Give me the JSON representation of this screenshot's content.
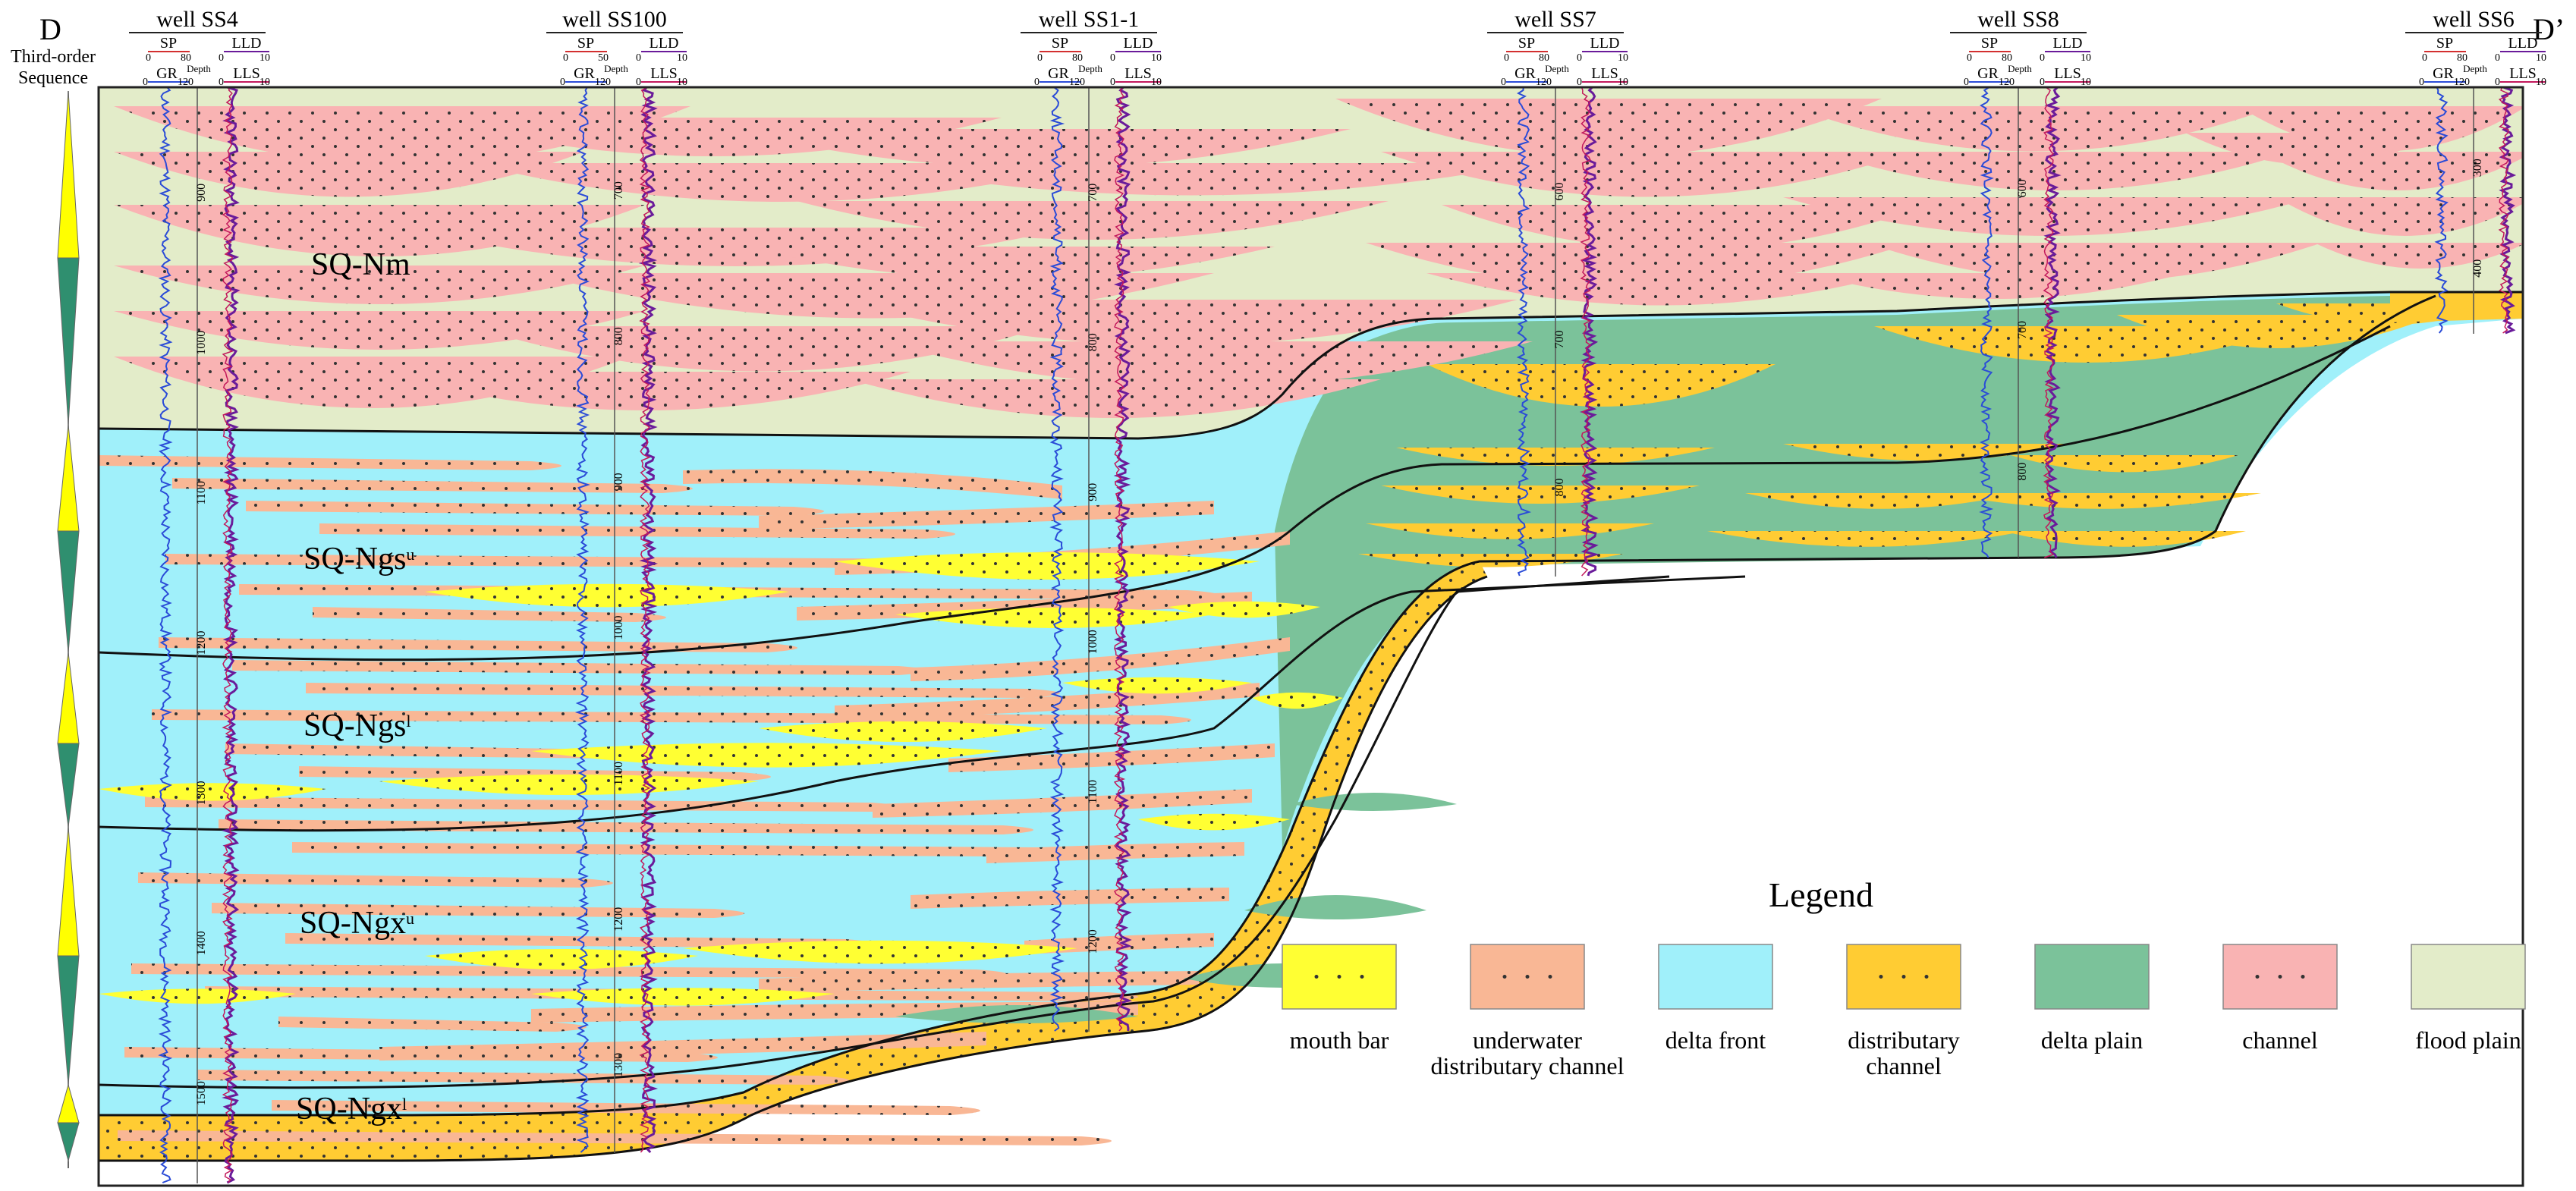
{
  "section": {
    "left_label": "D",
    "right_label": "D’",
    "sequence_column_title": [
      "Third-order",
      "Sequence"
    ]
  },
  "log_labels": {
    "sp": "SP",
    "gr": "GR",
    "depth": "Depth",
    "lld": "LLD",
    "lls": "LLS"
  },
  "wells": [
    {
      "name": "well SS4",
      "sp_max": "80",
      "depths": [
        "900",
        "1000",
        "1100",
        "1200",
        "1300",
        "1400",
        "1500"
      ]
    },
    {
      "name": "well SS100",
      "sp_max": "50",
      "depths": [
        "700",
        "800",
        "900",
        "1000",
        "1100",
        "1200",
        "1300"
      ]
    },
    {
      "name": "well SS1-1",
      "sp_max": "80",
      "depths": [
        "700",
        "800",
        "900",
        "1000",
        "1100",
        "1200"
      ]
    },
    {
      "name": "well SS7",
      "sp_max": "80",
      "depths": [
        "600",
        "700",
        "800"
      ]
    },
    {
      "name": "well SS8",
      "sp_max": "80",
      "depths": [
        "600",
        "700",
        "800"
      ]
    },
    {
      "name": "well SS6",
      "sp_max": "80",
      "depths": [
        "300",
        "400"
      ]
    }
  ],
  "log_scale": {
    "sp_min": "0",
    "gr_min": "0",
    "gr_max": "120",
    "res_min": "0",
    "res_max": "10"
  },
  "sequences": [
    {
      "base": "SQ-Nm",
      "sup": ""
    },
    {
      "base": "SQ-Ngs",
      "sup": "u"
    },
    {
      "base": "SQ-Ngs",
      "sup": "l"
    },
    {
      "base": "SQ-Ngx",
      "sup": "u"
    },
    {
      "base": "SQ-Ngx",
      "sup": "l"
    }
  ],
  "legend": {
    "title": "Legend",
    "items": [
      {
        "name": "mouth-bar",
        "lines": [
          "mouth bar"
        ],
        "color": "#ffff33",
        "dots": true
      },
      {
        "name": "underwater-distributary-channel",
        "lines": [
          "underwater",
          "distributary channel"
        ],
        "color": "#f9b795",
        "dots": true
      },
      {
        "name": "delta-front",
        "lines": [
          "delta front"
        ],
        "color": "#a0f0fa",
        "dots": false
      },
      {
        "name": "distributary-channel",
        "lines": [
          "distributary",
          "channel"
        ],
        "color": "#ffcc33",
        "dots": true
      },
      {
        "name": "delta-plain",
        "lines": [
          "delta plain"
        ],
        "color": "#7bc29a",
        "dots": false
      },
      {
        "name": "channel",
        "lines": [
          "channel"
        ],
        "color": "#f9b3b3",
        "dots": true
      },
      {
        "name": "flood-plain",
        "lines": [
          "flood plain"
        ],
        "color": "#e3ecc9",
        "dots": false
      }
    ]
  },
  "colors": {
    "flood_plain": "#e3ecc9",
    "channel": "#f9b3b3",
    "delta_front": "#a0f0fa",
    "underwater_channel": "#f9b795",
    "mouth_bar": "#ffff33",
    "distributary_channel": "#ffcc33",
    "delta_plain": "#7bc29a",
    "sequence_marker": "#ffff00",
    "sequence_marker_alt": "#2f8f6f"
  }
}
